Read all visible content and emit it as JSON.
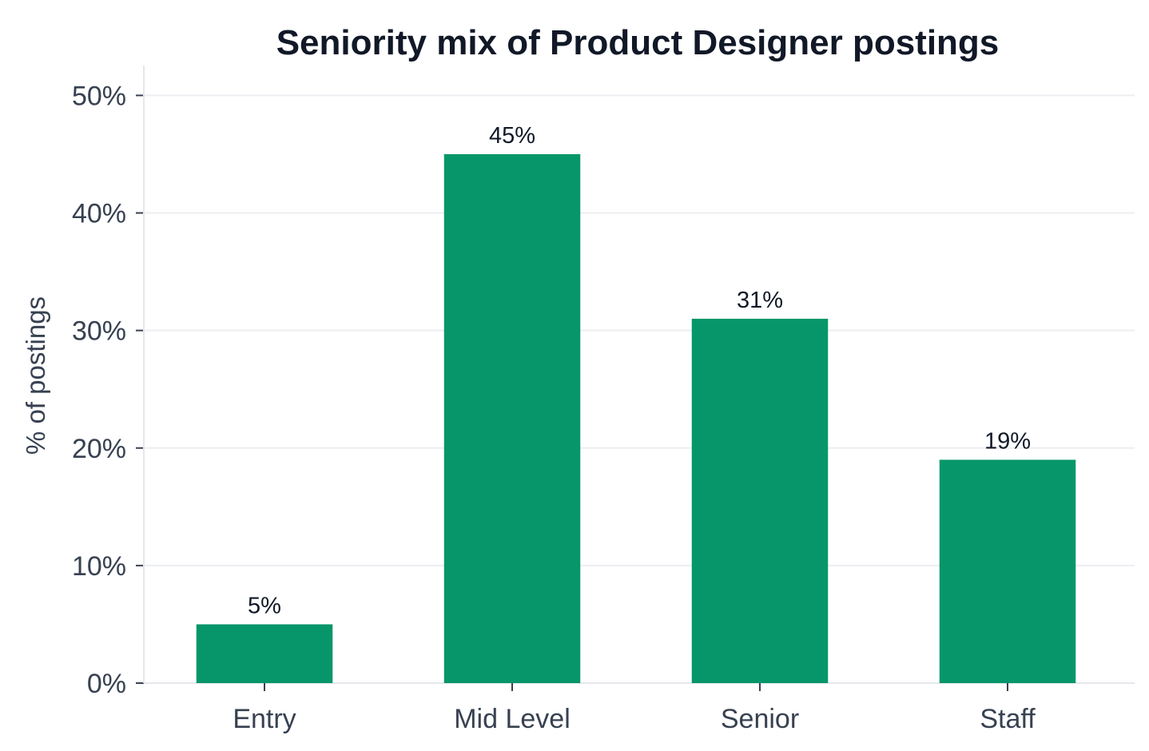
{
  "chart_data": {
    "type": "bar",
    "title": "Seniority mix of Product Designer postings",
    "xlabel": "",
    "ylabel": "% of postings",
    "categories": [
      "Entry",
      "Mid Level",
      "Senior",
      "Staff"
    ],
    "values": [
      5,
      45,
      31,
      19
    ],
    "data_labels": [
      "5%",
      "45%",
      "31%",
      "19%"
    ],
    "yticks": [
      0,
      10,
      20,
      30,
      40,
      50
    ],
    "ytick_labels": [
      "0%",
      "10%",
      "20%",
      "30%",
      "40%",
      "50%"
    ],
    "ylim": [
      0,
      52
    ],
    "grid": true,
    "legend": "none",
    "bar_color": "#069669"
  }
}
